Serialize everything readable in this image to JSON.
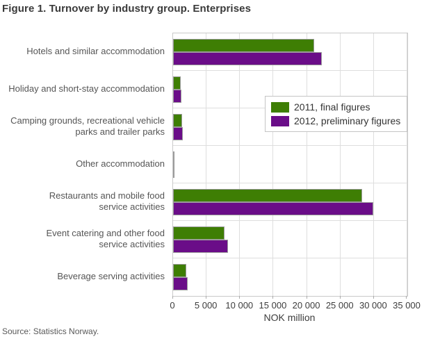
{
  "title": "Figure 1. Turnover by industry group. Enterprises",
  "source": "Source: Statistics Norway.",
  "colors": {
    "series_2011": "#3e7e04",
    "series_2012": "#6a0d88",
    "gridline": "#dedede",
    "plot_border": "#c9c9c9",
    "text": "#3a3a3a",
    "label_text": "#555555"
  },
  "chart_data": {
    "type": "bar",
    "orientation": "horizontal",
    "title": "Figure 1. Turnover by industry group. Enterprises",
    "categories": [
      "Hotels and similar accommodation",
      "Holiday and short-stay accommodation",
      "Camping grounds, recreational vehicle\nparks and trailer parks",
      "Other accommodation",
      "Restaurants and mobile food\nservice activities",
      "Event catering and other food\nservice activities",
      "Beverage serving activities"
    ],
    "series": [
      {
        "name": "2011, final figures",
        "color": "#3e7e04",
        "values": [
          21100,
          1100,
          1350,
          100,
          28300,
          7700,
          2000
        ]
      },
      {
        "name": "2012, preliminary figures",
        "color": "#6a0d88",
        "values": [
          22200,
          1200,
          1450,
          100,
          29900,
          8200,
          2200
        ]
      }
    ],
    "xlabel": "NOK million",
    "ylabel": "",
    "xlim": [
      0,
      35000
    ],
    "xticks": [
      0,
      5000,
      10000,
      15000,
      20000,
      25000,
      30000,
      35000
    ],
    "xtick_labels": [
      "0",
      "5 000",
      "10 000",
      "15 000",
      "20 000",
      "25 000",
      "30 000",
      "35 000"
    ],
    "grid": true,
    "legend_position": "inside-upper-right"
  }
}
